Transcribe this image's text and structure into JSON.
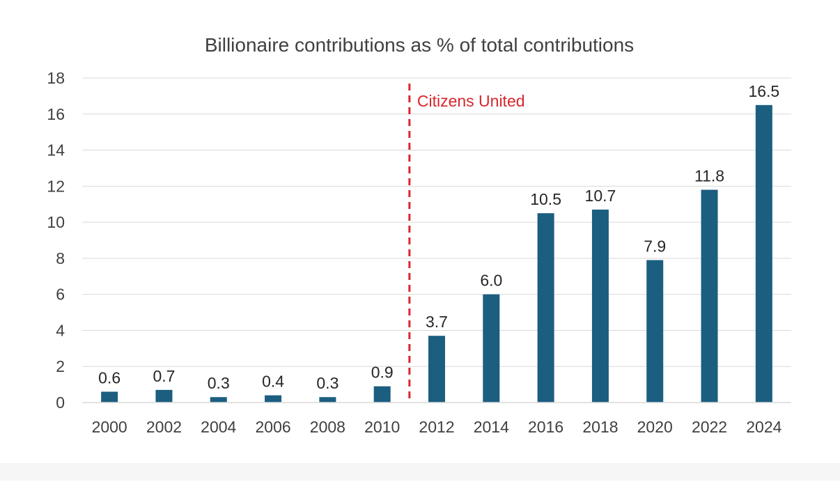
{
  "chart_data": {
    "type": "bar",
    "title": "Billionaire contributions as % of total contributions",
    "xlabel": "",
    "ylabel": "",
    "categories": [
      "2000",
      "2002",
      "2004",
      "2006",
      "2008",
      "2010",
      "2012",
      "2014",
      "2016",
      "2018",
      "2020",
      "2022",
      "2024"
    ],
    "values": [
      0.6,
      0.7,
      0.3,
      0.4,
      0.3,
      0.9,
      3.7,
      6.0,
      10.5,
      10.7,
      7.9,
      11.8,
      16.5
    ],
    "data_labels": [
      "0.6",
      "0.7",
      "0.3",
      "0.4",
      "0.3",
      "0.9",
      "3.7",
      "6.0",
      "10.5",
      "10.7",
      "7.9",
      "11.8",
      "16.5"
    ],
    "ylim": [
      0,
      18
    ],
    "yticks": [
      0,
      2,
      4,
      6,
      8,
      10,
      12,
      14,
      16,
      18
    ],
    "grid": true,
    "legend": "none",
    "annotation": {
      "text": "Citizens United",
      "between_categories": [
        "2010",
        "2012"
      ],
      "line_style": "dashed"
    },
    "colors": {
      "bar": "#1b5e80",
      "annotation": "#d9262c",
      "grid": "#d9d9d9",
      "axis": "#d9d9d9"
    }
  }
}
